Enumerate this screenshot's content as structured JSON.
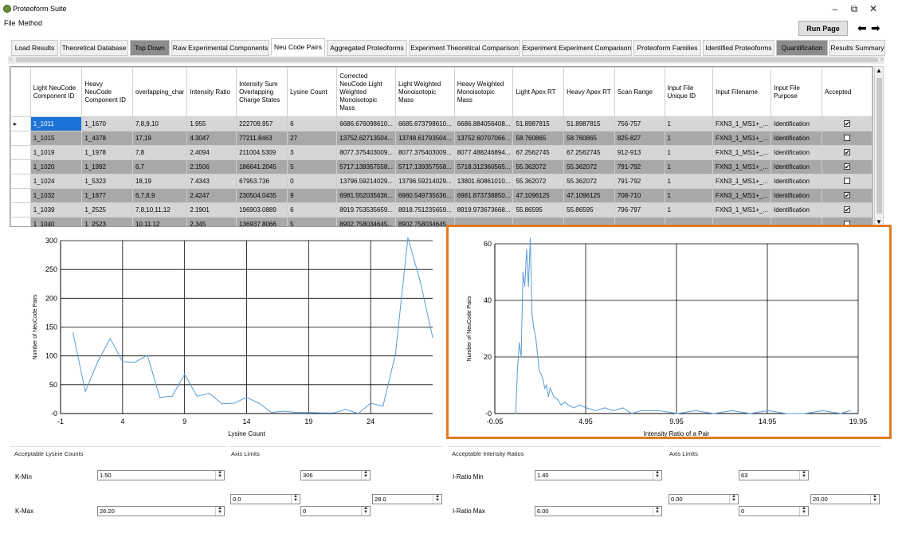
{
  "app": {
    "title": "Proteoform Suite",
    "menu": [
      "File",
      "Method"
    ],
    "run_label": "Run Page",
    "back_arrow": "⬅",
    "forward_arrow": "➡",
    "window_controls": {
      "minimize": "–",
      "maximize": "⧉",
      "close": "✕"
    }
  },
  "tabs": [
    {
      "label": "Load Results"
    },
    {
      "label": "Theoretical Database"
    },
    {
      "label": "Top Down"
    },
    {
      "label": "Raw Experimental Components"
    },
    {
      "label": "Neu Code Pairs"
    },
    {
      "label": "Aggregated Proteoforms"
    },
    {
      "label": "Experiment Theoretical Comparison"
    },
    {
      "label": "Experiment Experiment Comparison"
    },
    {
      "label": "Proteoform Families"
    },
    {
      "label": "Identified Proteoforms"
    },
    {
      "label": "Quantification"
    },
    {
      "label": "Results Summary"
    }
  ],
  "grid": {
    "columns": [
      "Light NeuCode Component ID",
      "Heavy NeuCode Component ID",
      "overlapping_char",
      "Intensity Ratio",
      "Intensity Sum Overlapping Charge States",
      "Lysine Count",
      "Corrected NeuCode Light Weighted Monoisotopic Mass",
      "Light Weighted Monoisotopic Mass",
      "Heavy Weighted Monoisotopic Mass",
      "Light Apex RT",
      "Heavy Apex RT",
      "Scan Range",
      "Input File Unique ID",
      "Input Filename",
      "Input File Purpose",
      "Accepted"
    ],
    "rows": [
      {
        "cells": [
          "1_1011",
          "1_1670",
          "7,8,9,10",
          "1.955",
          "222709.957",
          "6",
          "6686.676098610...",
          "6685.673798610...",
          "6686.884056408...",
          "51.8987815",
          "51.8987815",
          "756-757",
          "1",
          "FXN3_1_MS1+_...",
          "Identification"
        ],
        "accepted": "✔"
      },
      {
        "cells": [
          "1_1015",
          "1_4378",
          "17,19",
          "4.3047",
          "77211.8463",
          "27",
          "13752.62713504...",
          "13748.61793504...",
          "13752.60707066...",
          "58.760865",
          "58.760865",
          "825-827",
          "1",
          "FXN3_1_MS1+_...",
          "Identification"
        ],
        "accepted": ""
      },
      {
        "cells": [
          "1_1019",
          "1_1978",
          "7,8",
          "2.4094",
          "211004.5309",
          "3",
          "8077.375403009...",
          "8077.375403009...",
          "8077.488246894...",
          "67.2562745",
          "67.2562745",
          "912-913",
          "1",
          "FXN3_1_MS1+_...",
          "Identification"
        ],
        "accepted": "✔"
      },
      {
        "cells": [
          "1_1020",
          "1_1992",
          "6,7",
          "2.1506",
          "186641.2045",
          "5",
          "5717.139357558...",
          "5717.139357558...",
          "5718.312360565...",
          "55.362072",
          "55.362072",
          "791-792",
          "1",
          "FXN3_1_MS1+_...",
          "Identification"
        ],
        "accepted": "✔"
      },
      {
        "cells": [
          "1_1024",
          "1_5323",
          "18,19",
          "7.4343",
          "67953.736",
          "0",
          "13796.59214029...",
          "13796.59214029...",
          "13801.60861010...",
          "55.362072",
          "55.362072",
          "791-792",
          "1",
          "FXN3_1_MS1+_...",
          "Identification"
        ],
        "accepted": ""
      },
      {
        "cells": [
          "1_1032",
          "1_1877",
          "6,7,8,9",
          "2.4247",
          "230504.0435",
          "9",
          "6981.552035636...",
          "6980.549735636...",
          "6981.873738850...",
          "47.1096125",
          "47.1096125",
          "708-710",
          "1",
          "FXN3_1_MS1+_...",
          "Identification"
        ],
        "accepted": "✔"
      },
      {
        "cells": [
          "1_1039",
          "1_2525",
          "7,8,10,11,12",
          "2.1901",
          "196903.0889",
          "6",
          "8919.753535659...",
          "8918.751235659...",
          "8919.973673668...",
          "55.86595",
          "55.86595",
          "796-797",
          "1",
          "FXN3_1_MS1+_...",
          "Identification"
        ],
        "accepted": "✔"
      },
      {
        "cells": [
          "1_1040",
          "1_2523",
          "10,11,12",
          "2.345",
          "136937.8066",
          "5",
          "8902.758034645...",
          "8902.758034645...",
          "",
          "",
          "",
          "",
          "",
          "",
          ""
        ],
        "accepted": ""
      }
    ]
  },
  "chart_data": [
    {
      "type": "line",
      "title": "",
      "xlabel": "Lysine Count",
      "ylabel": "Number of NeuCode Pairs",
      "xlim": [
        -1,
        29
      ],
      "ylim": [
        0,
        300
      ],
      "xticks": [
        "-1",
        "4",
        "9",
        "14",
        "19",
        "24"
      ],
      "yticks": [
        "-0",
        "50",
        "100",
        "150",
        "200",
        "250",
        "300"
      ],
      "x": [
        0,
        1,
        2,
        3,
        4,
        5,
        6,
        7,
        8,
        9,
        10,
        11,
        12,
        13,
        14,
        15,
        16,
        17,
        18,
        19,
        20,
        21,
        22,
        23,
        24,
        25,
        26,
        27,
        28,
        29
      ],
      "values": [
        140,
        38,
        90,
        130,
        90,
        89,
        101,
        28,
        30,
        68,
        30,
        35,
        17,
        18,
        28,
        18,
        2,
        4,
        2,
        2,
        1,
        1,
        7,
        0,
        18,
        13,
        103,
        305,
        229,
        132
      ]
    },
    {
      "type": "line",
      "title": "",
      "xlabel": "Intensity Ratio of a Pair",
      "ylabel": "Number of NeuCode Pairs",
      "xlim": [
        -0.05,
        19.95
      ],
      "ylim": [
        0,
        60
      ],
      "xticks": [
        "-0.05",
        "4.95",
        "9.95",
        "14.95",
        "19.95"
      ],
      "yticks": [
        "-0",
        "20",
        "40",
        "60"
      ],
      "x": [
        1.1,
        1.2,
        1.3,
        1.4,
        1.5,
        1.6,
        1.7,
        1.8,
        1.9,
        2.0,
        2.1,
        2.2,
        2.3,
        2.4,
        2.5,
        2.6,
        2.7,
        2.8,
        2.9,
        3.0,
        3.2,
        3.4,
        3.6,
        3.8,
        4.0,
        4.3,
        4.6,
        5.0,
        5.5,
        6.0,
        6.5,
        7.0,
        7.5,
        8.0,
        9.0,
        10.0,
        11.0,
        12.0,
        13.0,
        14.0,
        15.0,
        16.0,
        17.0,
        18.0,
        19.0,
        19.5
      ],
      "values": [
        0,
        16,
        25,
        20,
        50,
        45,
        58,
        45,
        62,
        35,
        30,
        27,
        21,
        15,
        14,
        12,
        9,
        10,
        6,
        9,
        6,
        5,
        3,
        4,
        3,
        2,
        3,
        2,
        1,
        2,
        1,
        2,
        0,
        1,
        1,
        0,
        1,
        0,
        1,
        0,
        1,
        0,
        0,
        1,
        0,
        1
      ]
    }
  ],
  "lysine_panel": {
    "group_title": "Acceptable Lysine Counts",
    "kmin_label": "K-Min",
    "kmin_value": "1.50",
    "kmax_label": "K-Max",
    "kmax_value": "26.20"
  },
  "lysine_axis": {
    "group_title": "Axis Limits",
    "ymax": "306",
    "xmin": "0.0",
    "xmax": "28.0",
    "ymin": "0"
  },
  "ratio_panel": {
    "group_title": "Acceptable Intensity Ratios",
    "min_label": "I-Ratio Min",
    "min_value": "1.40",
    "max_label": "I-Ratio Max",
    "max_value": "6.00"
  },
  "ratio_axis": {
    "group_title": "Axis Limits",
    "ymax": "63",
    "xmin": "0.00",
    "xmax": "20.00",
    "ymin": "0"
  },
  "colors": {
    "accent_highlight": "#e07b22",
    "line": "#5b9bd5",
    "selected_cell": "#1a73d6"
  }
}
